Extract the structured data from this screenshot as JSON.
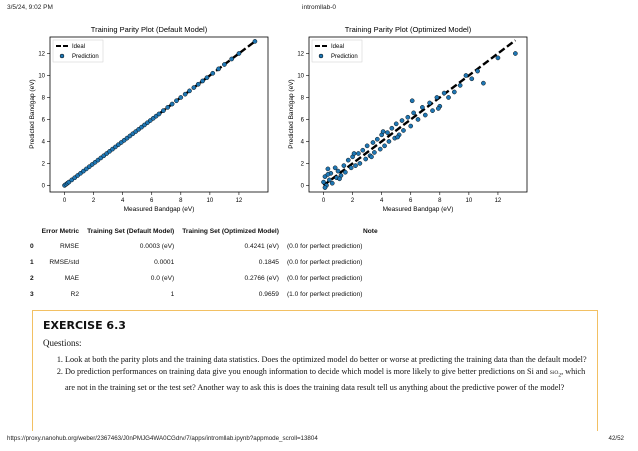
{
  "header": {
    "datetime": "3/5/24, 9:02 PM",
    "title": "intromllab-0"
  },
  "plots": {
    "default": {
      "title": "Training Parity Plot (Default Model)"
    },
    "optimized": {
      "title": "Training Parity Plot (Optimized Model)"
    },
    "xlabel": "Measured Bandgap (eV)",
    "ylabel": "Predicted Bandgap (eV)",
    "ticks": [
      "0",
      "2",
      "4",
      "6",
      "8",
      "10",
      "12"
    ],
    "legend": {
      "ideal": "Ideal",
      "prediction": "Prediction"
    },
    "colors": {
      "point": "#1f77b4",
      "line": "#000000"
    }
  },
  "chart_data": [
    {
      "type": "scatter",
      "title": "Training Parity Plot (Default Model)",
      "xlabel": "Measured Bandgap (eV)",
      "ylabel": "Predicted Bandgap (eV)",
      "xlim": [
        -1,
        14
      ],
      "ylim": [
        -0.6,
        13.5
      ],
      "legend_position": "top-left",
      "series": [
        {
          "name": "Ideal",
          "kind": "line",
          "x": [
            0,
            13.2
          ],
          "y": [
            0,
            13.2
          ]
        },
        {
          "name": "Prediction",
          "kind": "scatter",
          "noise": 0.02,
          "x": [
            0.0,
            0.1,
            0.2,
            0.3,
            0.5,
            0.7,
            0.9,
            1.1,
            1.3,
            1.5,
            1.7,
            1.9,
            2.1,
            2.3,
            2.5,
            2.7,
            2.9,
            3.1,
            3.3,
            3.5,
            3.7,
            3.9,
            4.1,
            4.3,
            4.5,
            4.7,
            4.9,
            5.1,
            5.3,
            5.5,
            5.7,
            5.9,
            6.1,
            6.3,
            6.5,
            6.8,
            7.1,
            7.4,
            7.7,
            8.0,
            8.3,
            8.6,
            8.9,
            9.2,
            9.5,
            9.8,
            10.2,
            10.6,
            11.0,
            11.5,
            12.0,
            13.1
          ],
          "y": [
            0.0,
            0.1,
            0.2,
            0.3,
            0.5,
            0.7,
            0.9,
            1.1,
            1.3,
            1.5,
            1.7,
            1.9,
            2.1,
            2.3,
            2.5,
            2.7,
            2.9,
            3.1,
            3.3,
            3.5,
            3.7,
            3.9,
            4.1,
            4.3,
            4.5,
            4.7,
            4.9,
            5.1,
            5.3,
            5.5,
            5.7,
            5.9,
            6.1,
            6.3,
            6.5,
            6.8,
            7.1,
            7.4,
            7.7,
            8.0,
            8.3,
            8.6,
            8.9,
            9.2,
            9.5,
            9.8,
            10.2,
            10.6,
            11.0,
            11.5,
            12.0,
            13.1
          ]
        }
      ]
    },
    {
      "type": "scatter",
      "title": "Training Parity Plot (Optimized Model)",
      "xlabel": "Measured Bandgap (eV)",
      "ylabel": "Predicted Bandgap (eV)",
      "xlim": [
        -1,
        14
      ],
      "ylim": [
        -0.6,
        13.5
      ],
      "legend_position": "top-left",
      "series": [
        {
          "name": "Ideal",
          "kind": "line",
          "x": [
            0,
            13.2
          ],
          "y": [
            0,
            13.2
          ]
        },
        {
          "name": "Prediction",
          "kind": "scatter",
          "x": [
            0.0,
            0.1,
            0.2,
            0.3,
            0.4,
            0.5,
            0.6,
            0.8,
            0.9,
            1.0,
            1.2,
            1.4,
            1.5,
            1.7,
            1.9,
            2.0,
            2.2,
            2.4,
            2.5,
            2.7,
            2.9,
            3.0,
            3.2,
            3.4,
            3.5,
            3.7,
            3.9,
            4.0,
            4.2,
            4.4,
            4.5,
            4.7,
            4.9,
            5.0,
            5.2,
            5.4,
            5.5,
            5.8,
            6.0,
            6.2,
            6.5,
            6.8,
            7.0,
            7.3,
            7.5,
            7.8,
            8.0,
            8.3,
            8.6,
            9.0,
            9.4,
            9.8,
            10.2,
            10.6,
            11.0,
            12.0,
            13.2,
            0.1,
            0.3,
            1.1,
            2.1,
            3.3,
            4.1,
            5.1,
            6.1,
            7.9
          ],
          "y": [
            0.3,
            0.8,
            0.0,
            1.5,
            0.5,
            1.1,
            0.2,
            1.6,
            0.7,
            1.3,
            0.9,
            1.8,
            1.2,
            2.3,
            1.6,
            2.6,
            1.8,
            2.9,
            2.0,
            3.2,
            2.4,
            3.6,
            2.7,
            3.9,
            3.0,
            4.2,
            3.3,
            4.6,
            3.6,
            4.8,
            4.0,
            5.2,
            4.3,
            5.6,
            4.6,
            5.9,
            5.0,
            6.2,
            5.4,
            6.6,
            6.0,
            7.1,
            6.4,
            7.5,
            6.8,
            8.0,
            7.2,
            8.4,
            8.0,
            8.5,
            9.1,
            10.0,
            9.7,
            10.4,
            9.3,
            11.6,
            12.0,
            -0.2,
            1.0,
            0.6,
            2.9,
            2.6,
            4.9,
            4.4,
            7.7,
            7.0
          ]
        }
      ]
    }
  ],
  "table": {
    "headers": [
      "",
      "Error Metric",
      "Training Set (Default Model)",
      "Training Set (Optimized Model)",
      "Note"
    ],
    "rows": [
      [
        "0",
        "RMSE",
        "0.0003 (eV)",
        "0.4241 (eV)",
        "(0.0 for perfect prediction)"
      ],
      [
        "1",
        "RMSE/std",
        "0.0001",
        "0.1845",
        "(0.0 for perfect prediction)"
      ],
      [
        "2",
        "MAE",
        "0.0 (eV)",
        "0.2766 (eV)",
        "(0.0 for perfect prediction)"
      ],
      [
        "3",
        "R2",
        "1",
        "0.9659",
        "(1.0 for perfect prediction)"
      ]
    ]
  },
  "exercise": {
    "title": "EXERCISE 6.3",
    "questions_label": "Questions:",
    "items": [
      "Look at both the parity plots and the training data statistics. Does the optimized model do better or worse at predicting the training data than the default model?"
    ],
    "item2_part1": "Do prediction performances on training data give you enough information to decide which model is more likely to give better predictions on Si and ",
    "item2_formula": "SiO",
    "item2_sub": "2",
    "item2_part2": ", which are not in the training set or the test set? Another way to ask this is does the training data result tell us anything about the predictive power of the model?"
  },
  "footer": {
    "url": "https://proxy.nanohub.org/weber/2367463/J0nPMJG4WA0CGdrv/7/apps/intromllab.ipynb?appmode_scroll=13804",
    "page": "42/52"
  }
}
